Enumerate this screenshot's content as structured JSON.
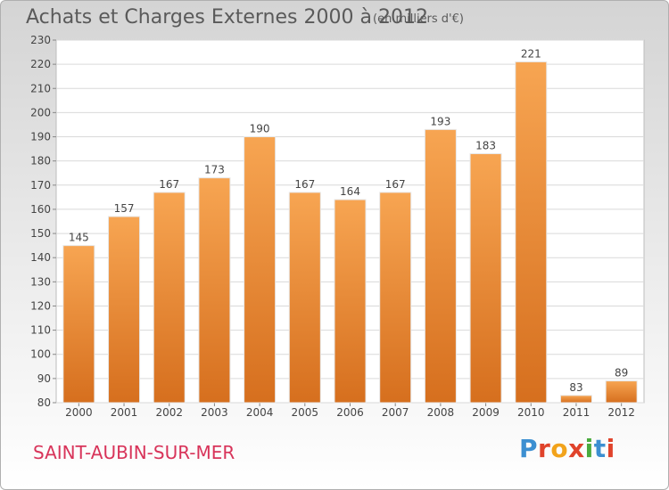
{
  "header": {
    "title": "Achats et Charges Externes 2000 à 2012",
    "unit": "(en milliers d'€)"
  },
  "footer": {
    "commune": "SAINT-AUBIN-SUR-MER",
    "logo_text": "Proxiti",
    "logo_colors": [
      "#3c8fd1",
      "#e0432b",
      "#f2a31b",
      "#e0432b",
      "#4aab3e",
      "#3c8fd1",
      "#e0432b"
    ]
  },
  "chart_data": {
    "type": "bar",
    "title": "Achats et Charges Externes 2000 à 2012",
    "xlabel": "",
    "ylabel": "",
    "categories": [
      "2000",
      "2001",
      "2002",
      "2003",
      "2004",
      "2005",
      "2006",
      "2007",
      "2008",
      "2009",
      "2010",
      "2011",
      "2012"
    ],
    "values": [
      145,
      157,
      167,
      173,
      190,
      167,
      164,
      167,
      193,
      183,
      221,
      83,
      89
    ],
    "ylim": [
      80,
      230
    ],
    "yticks": [
      80,
      90,
      100,
      110,
      120,
      130,
      140,
      150,
      160,
      170,
      180,
      190,
      200,
      210,
      220,
      230
    ],
    "grid": true,
    "bar_color": "#f0913a",
    "bar_color_dark": "#d9701c"
  }
}
